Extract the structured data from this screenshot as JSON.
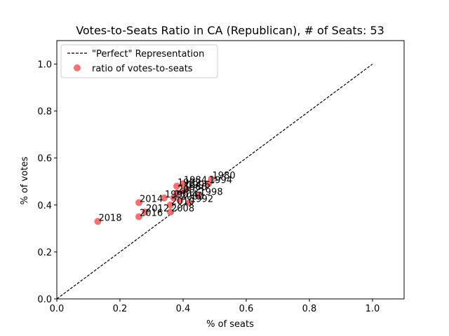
{
  "chart_data": {
    "type": "scatter",
    "title": "Votes-to-Seats Ratio in CA (Republican), # of Seats: 53",
    "xlabel": "% of seats",
    "ylabel": "% of votes",
    "xlim": [
      0.0,
      1.1
    ],
    "ylim": [
      0.0,
      1.1
    ],
    "xticks": [
      "0.0",
      "0.2",
      "0.4",
      "0.6",
      "0.8",
      "1.0"
    ],
    "yticks": [
      "0.0",
      "0.2",
      "0.4",
      "0.6",
      "0.8",
      "1.0"
    ],
    "grid": false,
    "legend_position": "top-left",
    "legend": {
      "perfect_label": "\"Perfect\" Representation",
      "ratio_label": "ratio of votes-to-seats"
    },
    "reference_line": {
      "name": "\"Perfect\" Representation",
      "x": [
        0.0,
        1.0
      ],
      "y": [
        0.0,
        1.0
      ],
      "color": "#000000",
      "style": "dashed"
    },
    "series": [
      {
        "name": "ratio of votes-to-seats",
        "color": "#ee5a5a",
        "points": [
          {
            "label": "2018",
            "x": 0.13,
            "y": 0.33
          },
          {
            "label": "2016",
            "x": 0.26,
            "y": 0.35
          },
          {
            "label": "2012",
            "x": 0.28,
            "y": 0.37
          },
          {
            "label": "2014",
            "x": 0.26,
            "y": 0.41
          },
          {
            "label": "2008",
            "x": 0.36,
            "y": 0.37
          },
          {
            "label": "2010",
            "x": 0.36,
            "y": 0.4
          },
          {
            "label": "1990",
            "x": 0.34,
            "y": 0.43
          },
          {
            "label": "2004",
            "x": 0.37,
            "y": 0.43
          },
          {
            "label": "2000",
            "x": 0.39,
            "y": 0.42
          },
          {
            "label": "1992",
            "x": 0.42,
            "y": 0.41
          },
          {
            "label": "2002",
            "x": 0.38,
            "y": 0.45
          },
          {
            "label": "1986",
            "x": 0.4,
            "y": 0.46
          },
          {
            "label": "1996",
            "x": 0.41,
            "y": 0.47
          },
          {
            "label": "1998",
            "x": 0.45,
            "y": 0.44
          },
          {
            "label": "1982",
            "x": 0.38,
            "y": 0.48
          },
          {
            "label": "1984",
            "x": 0.4,
            "y": 0.49
          },
          {
            "label": "1994",
            "x": 0.48,
            "y": 0.49
          },
          {
            "label": "1980",
            "x": 0.49,
            "y": 0.51
          }
        ]
      }
    ]
  }
}
